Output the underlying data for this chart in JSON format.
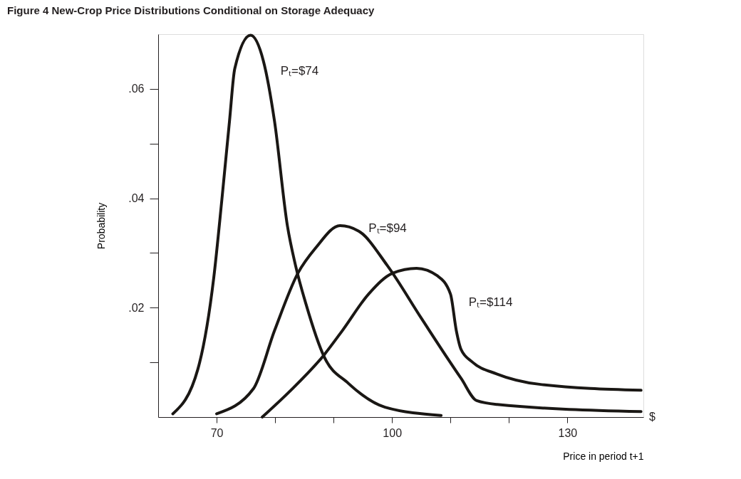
{
  "chart_data": {
    "type": "line",
    "title": "Figure 4 New-Crop Price Distributions Conditional on Storage Adequacy",
    "xlabel": "Price in period t+1",
    "ylabel": "Probability",
    "xlim": [
      60,
      143
    ],
    "ylim": [
      0,
      0.07
    ],
    "xticks": [
      70,
      {
        "value": 80,
        "label": null
      },
      {
        "value": 90,
        "label": null
      },
      100,
      {
        "value": 110,
        "label": null
      },
      {
        "value": 120,
        "label": null
      },
      130
    ],
    "yticks": [
      {
        "value": 0.01,
        "label": null
      },
      {
        "value": 0.02,
        "label": ".02"
      },
      {
        "value": 0.03,
        "label": null
      },
      {
        "value": 0.04,
        "label": ".04"
      },
      {
        "value": 0.05,
        "label": null
      },
      {
        "value": 0.06,
        "label": ".06"
      }
    ],
    "grid": false,
    "marker": "none",
    "line_style": "solid",
    "series": [
      {
        "name": "Pₜ=$74",
        "color": "#1a1714",
        "x": [
          62.5,
          66.8,
          69.5,
          70.9,
          72.2,
          73.1,
          75.8,
          78.0,
          79.9,
          82.1,
          83.5,
          85.3,
          88.4,
          92.5,
          98.8,
          108.4
        ],
        "values": [
          0.0006,
          0.0088,
          0.0254,
          0.0398,
          0.0541,
          0.0637,
          0.0698,
          0.0651,
          0.0541,
          0.035,
          0.0277,
          0.0206,
          0.011,
          0.0062,
          0.0018,
          0.0003
        ]
      },
      {
        "name": "Pₜ=$94",
        "color": "#1a1714",
        "x": [
          70.0,
          76.3,
          79.9,
          83.9,
          87.0,
          91.1,
          94.3,
          99.2,
          105.0,
          111.8,
          114.5,
          118.0,
          142.6
        ],
        "values": [
          0.0006,
          0.0052,
          0.0158,
          0.0263,
          0.031,
          0.035,
          0.034,
          0.0277,
          0.0181,
          0.0071,
          0.003,
          0.0023,
          0.001
        ]
      },
      {
        "name": "Pₜ=$114",
        "color": "#1a1714",
        "x": [
          77.8,
          82.5,
          88.4,
          91.5,
          96.0,
          100.1,
          104.2,
          107.8,
          110.0,
          111.0,
          111.8,
          113.7,
          117.9,
          125.2,
          142.6
        ],
        "values": [
          0.0,
          0.0047,
          0.0114,
          0.0158,
          0.0225,
          0.0263,
          0.0272,
          0.0258,
          0.0225,
          0.0158,
          0.0124,
          0.0101,
          0.0079,
          0.006,
          0.0049
        ]
      }
    ],
    "annotations": [
      "$"
    ]
  }
}
